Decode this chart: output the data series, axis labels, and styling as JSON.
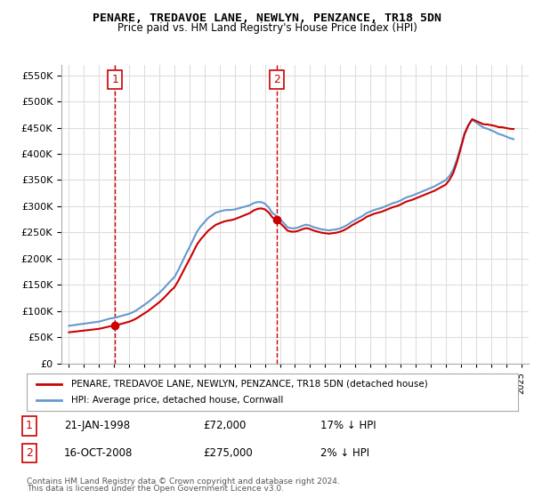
{
  "title": "PENARE, TREDAVOE LANE, NEWLYN, PENZANCE, TR18 5DN",
  "subtitle": "Price paid vs. HM Land Registry's House Price Index (HPI)",
  "legend_line1": "PENARE, TREDAVOE LANE, NEWLYN, PENZANCE, TR18 5DN (detached house)",
  "legend_line2": "HPI: Average price, detached house, Cornwall",
  "table_rows": [
    {
      "num": "1",
      "date": "21-JAN-1998",
      "price": "£72,000",
      "change": "17% ↓ HPI"
    },
    {
      "num": "2",
      "date": "16-OCT-2008",
      "price": "£275,000",
      "change": "2% ↓ HPI"
    }
  ],
  "footer1": "Contains HM Land Registry data © Crown copyright and database right 2024.",
  "footer2": "This data is licensed under the Open Government Licence v3.0.",
  "sale1_year": 1998.05,
  "sale1_price": 72000,
  "sale2_year": 2008.79,
  "sale2_price": 275000,
  "hpi_color": "#6699cc",
  "price_color": "#cc0000",
  "marker_color": "#cc0000",
  "annotation_color": "#cc0000",
  "grid_color": "#dddddd",
  "bg_color": "#ffffff",
  "ylim_min": 0,
  "ylim_max": 570000,
  "yticks": [
    0,
    50000,
    100000,
    150000,
    200000,
    250000,
    300000,
    350000,
    400000,
    450000,
    500000,
    550000
  ],
  "xlim_min": 1994.5,
  "xlim_max": 2025.5
}
